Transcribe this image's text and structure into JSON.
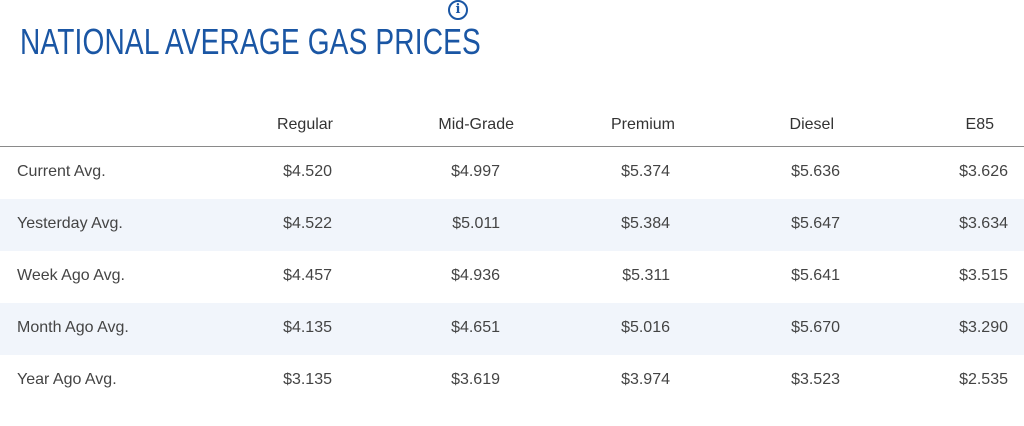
{
  "title": "NATIONAL AVERAGE GAS PRICES",
  "info_icon": "info-icon",
  "columns": [
    "Regular",
    "Mid-Grade",
    "Premium",
    "Diesel",
    "E85"
  ],
  "rows": [
    {
      "label": "Current Avg.",
      "values": [
        "$4.520",
        "$4.997",
        "$5.374",
        "$5.636",
        "$3.626"
      ]
    },
    {
      "label": "Yesterday Avg.",
      "values": [
        "$4.522",
        "$5.011",
        "$5.384",
        "$5.647",
        "$3.634"
      ]
    },
    {
      "label": "Week Ago Avg.",
      "values": [
        "$4.457",
        "$4.936",
        "$5.311",
        "$5.641",
        "$3.515"
      ]
    },
    {
      "label": "Month Ago Avg.",
      "values": [
        "$4.135",
        "$4.651",
        "$5.016",
        "$5.670",
        "$3.290"
      ]
    },
    {
      "label": "Year Ago Avg.",
      "values": [
        "$3.135",
        "$3.619",
        "$3.974",
        "$3.523",
        "$2.535"
      ]
    }
  ],
  "colors": {
    "title": "#1a56a4",
    "alt_row": "#f1f5fb",
    "text": "#444444"
  }
}
